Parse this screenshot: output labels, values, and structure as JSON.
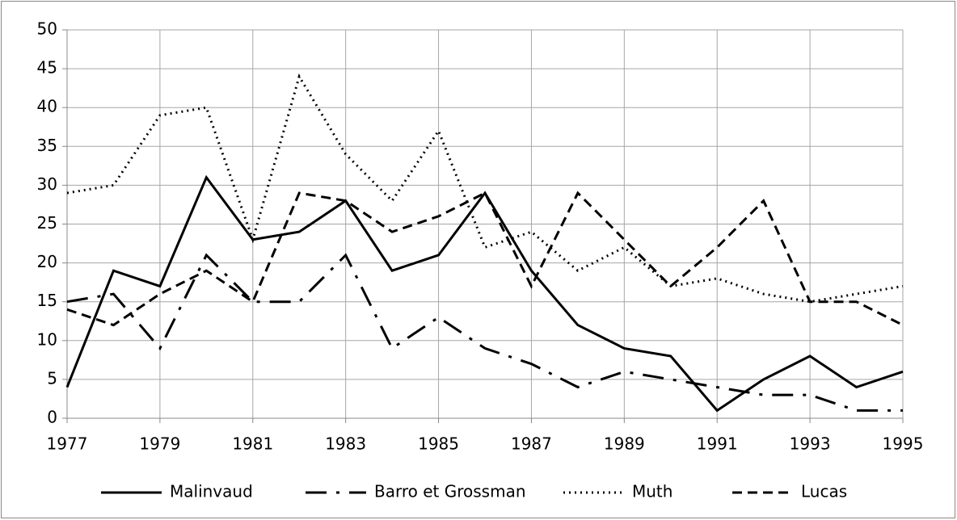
{
  "chart_data": {
    "type": "line",
    "x": [
      1977,
      1978,
      1979,
      1980,
      1981,
      1982,
      1983,
      1984,
      1985,
      1986,
      1987,
      1988,
      1989,
      1990,
      1991,
      1992,
      1993,
      1994,
      1995
    ],
    "series": [
      {
        "name": "Malinvaud",
        "color": "#000000",
        "dash": "solid",
        "values": [
          4,
          19,
          17,
          31,
          23,
          24,
          28,
          19,
          21,
          29,
          19,
          12,
          9,
          8,
          1,
          5,
          8,
          4,
          6
        ]
      },
      {
        "name": "Barro et Grossman",
        "color": "#000000",
        "dash": "dash-dot",
        "values": [
          15,
          16,
          9,
          21,
          15,
          15,
          21,
          9,
          13,
          9,
          7,
          4,
          6,
          5,
          4,
          3,
          3,
          1,
          1
        ]
      },
      {
        "name": "Muth",
        "color": "#000000",
        "dash": "dot",
        "values": [
          29,
          30,
          39,
          40,
          23,
          44,
          34,
          28,
          37,
          22,
          24,
          19,
          22,
          17,
          18,
          16,
          15,
          16,
          17
        ]
      },
      {
        "name": "Lucas",
        "color": "#000000",
        "dash": "dash",
        "values": [
          14,
          12,
          16,
          19,
          15,
          29,
          28,
          24,
          26,
          29,
          17,
          29,
          23,
          17,
          22,
          28,
          15,
          15,
          12
        ]
      }
    ],
    "xlim": [
      1977,
      1995
    ],
    "xticks": [
      1977,
      1979,
      1981,
      1983,
      1985,
      1987,
      1989,
      1991,
      1993,
      1995
    ],
    "ylim": [
      0,
      50
    ],
    "yticks": [
      0,
      5,
      10,
      15,
      20,
      25,
      30,
      35,
      40,
      45,
      50
    ],
    "grid": true,
    "legend": "bottom"
  }
}
